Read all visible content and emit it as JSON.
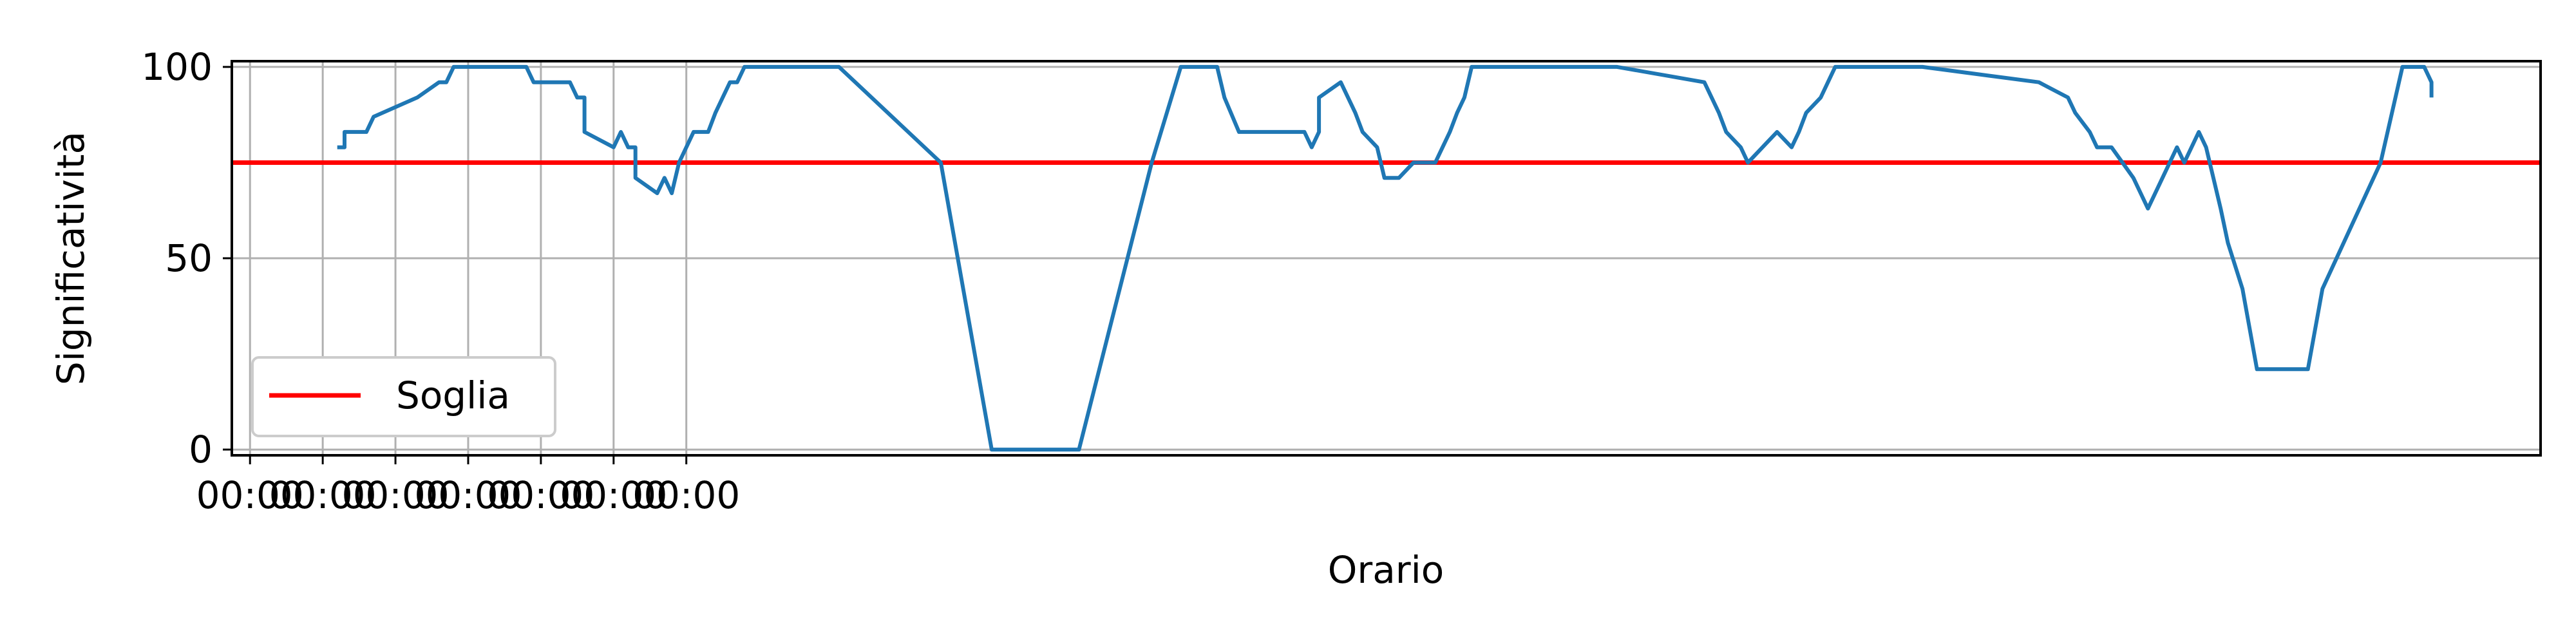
{
  "chart_data": {
    "type": "line",
    "xlabel": "Orario",
    "ylabel": "Significatività",
    "x_ticks": [
      "00:00",
      "00:00",
      "00:00",
      "00:00",
      "00:00",
      "00:00",
      "00:00"
    ],
    "y_ticks": [
      0,
      50,
      100
    ],
    "xlim": [
      -0.25,
      31.5
    ],
    "ylim": [
      -1.5,
      101.5
    ],
    "grid": true,
    "legend": {
      "position": "lower-left",
      "entries": [
        "Soglia"
      ]
    },
    "threshold": {
      "name": "Soglia",
      "value": 75,
      "color": "#ff0000"
    },
    "series": [
      {
        "color": "#1f77b4",
        "x": [
          1.2,
          1.3,
          1.3,
          1.6,
          1.7,
          2.3,
          2.3,
          2.6,
          2.7,
          2.8,
          2.8,
          3.8,
          3.9,
          4.4,
          4.5,
          4.6,
          4.6,
          5.0,
          5.1,
          5.2,
          5.3,
          5.3,
          5.6,
          5.7,
          5.8,
          5.9,
          6.0,
          6.1,
          6.3,
          6.4,
          6.5,
          6.6,
          6.7,
          6.8,
          7.0,
          7.1,
          7.2,
          7.3,
          7.4,
          7.7,
          7.8,
          8.1,
          8.1,
          9.5,
          10.2,
          10.6,
          11.4,
          12.4,
          12.8,
          13.3,
          13.4,
          13.6,
          14.5,
          14.6,
          14.7,
          14.7,
          15.0,
          15.1,
          15.2,
          15.3,
          15.5,
          15.6,
          15.8,
          16.0,
          16.1,
          16.3,
          16.4,
          16.5,
          16.6,
          16.7,
          16.8,
          17.2,
          18.8,
          20.0,
          20.1,
          20.2,
          20.3,
          20.5,
          20.6,
          20.8,
          21.0,
          21.2,
          21.3,
          21.4,
          21.6,
          21.7,
          21.8,
          21.9,
          22.0,
          22.3,
          22.4,
          22.8,
          22.9,
          23.0,
          24.6,
          25.0,
          25.1,
          25.3,
          25.4,
          25.6,
          25.9,
          26.0,
          26.1,
          26.3,
          26.4,
          26.5,
          26.6,
          26.7,
          26.8,
          26.9,
          27.0,
          27.1,
          27.2,
          27.4,
          27.6,
          28.3,
          28.5,
          29.3,
          29.6,
          29.9,
          30.0,
          30.0
        ],
        "y": [
          79,
          79,
          83,
          83,
          87,
          92,
          92,
          96,
          96,
          100,
          100,
          100,
          96,
          96,
          92,
          92,
          83,
          79,
          83,
          79,
          79,
          71,
          67,
          71,
          67,
          75,
          79,
          83,
          83,
          88,
          92,
          96,
          96,
          100,
          100,
          100,
          100,
          100,
          100,
          100,
          100,
          100,
          100,
          75,
          0,
          0,
          0,
          75,
          100,
          100,
          92,
          83,
          83,
          79,
          83,
          92,
          96,
          92,
          88,
          83,
          79,
          71,
          71,
          75,
          75,
          75,
          79,
          83,
          88,
          92,
          100,
          100,
          100,
          96,
          92,
          88,
          83,
          79,
          75,
          79,
          83,
          79,
          83,
          88,
          92,
          96,
          100,
          100,
          100,
          100,
          100,
          100,
          100,
          100,
          96,
          92,
          88,
          83,
          79,
          79,
          71,
          67,
          63,
          71,
          75,
          79,
          75,
          79,
          83,
          79,
          71,
          63,
          54,
          42,
          21,
          21,
          42,
          75,
          100,
          100,
          96,
          92
        ],
        "note_x_scale": "x values are in x-tick units (tick index 0..6); the original prints every tick as 00:00"
      }
    ]
  }
}
